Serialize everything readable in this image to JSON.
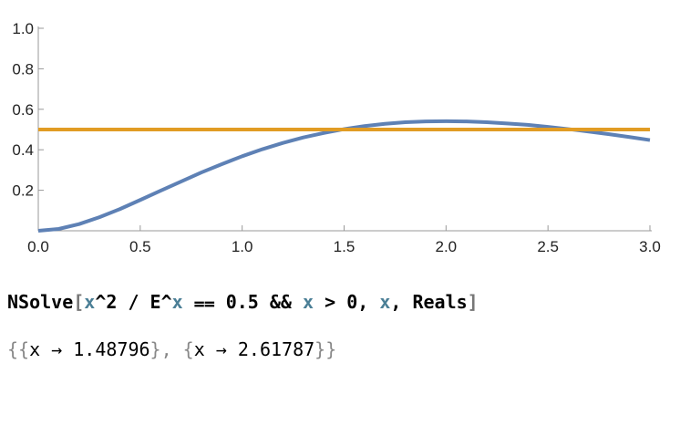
{
  "chart_data": {
    "type": "line",
    "x": [
      0,
      0.1,
      0.2,
      0.3,
      0.4,
      0.5,
      0.6,
      0.7,
      0.8,
      0.9,
      1,
      1.1,
      1.2,
      1.3,
      1.4,
      1.5,
      1.6,
      1.7,
      1.8,
      1.9,
      2,
      2.1,
      2.2,
      2.3,
      2.4,
      2.5,
      2.6,
      2.7,
      2.8,
      2.9,
      3
    ],
    "series": [
      {
        "color": "#5e81b5",
        "values": [
          0,
          0.009,
          0.033,
          0.067,
          0.107,
          0.152,
          0.198,
          0.243,
          0.288,
          0.329,
          0.368,
          0.403,
          0.434,
          0.461,
          0.483,
          0.502,
          0.517,
          0.528,
          0.536,
          0.54,
          0.541,
          0.54,
          0.536,
          0.53,
          0.523,
          0.513,
          0.502,
          0.49,
          0.477,
          0.463,
          0.448
        ]
      },
      {
        "color": "#e19c24",
        "values": [
          0.5,
          0.5,
          0.5,
          0.5,
          0.5,
          0.5,
          0.5,
          0.5,
          0.5,
          0.5,
          0.5,
          0.5,
          0.5,
          0.5,
          0.5,
          0.5,
          0.5,
          0.5,
          0.5,
          0.5,
          0.5,
          0.5,
          0.5,
          0.5,
          0.5,
          0.5,
          0.5,
          0.5,
          0.5,
          0.5,
          0.5
        ]
      }
    ],
    "xlim": [
      0,
      3
    ],
    "xticks": [
      {
        "value": 0,
        "label": "0.0"
      },
      0.5,
      {
        "value": 1,
        "label": "1.0"
      },
      1.5,
      {
        "value": 2,
        "label": "2.0"
      },
      2.5,
      {
        "value": 3,
        "label": "3.0"
      }
    ],
    "ylim": [
      0,
      1
    ],
    "yticks": [
      0.2,
      0.4,
      0.6,
      0.8,
      {
        "value": 1,
        "label": "1.0"
      }
    ]
  },
  "input": [
    {
      "text": "NSolve",
      "color": "#000000"
    },
    {
      "text": "[",
      "color": "#777777"
    },
    {
      "text": "x",
      "color": "#4b7f96"
    },
    {
      "text": "^2 / E^",
      "color": "#000000"
    },
    {
      "text": "x",
      "color": "#4b7f96"
    },
    {
      "text": " ⩵ 0.5 && ",
      "color": "#000000"
    },
    {
      "text": "x",
      "color": "#4b7f96"
    },
    {
      "text": " > 0, ",
      "color": "#000000"
    },
    {
      "text": "x",
      "color": "#4b7f96"
    },
    {
      "text": ", Reals",
      "color": "#000000"
    },
    {
      "text": "]",
      "color": "#777777"
    }
  ],
  "output": [
    {
      "text": "{{",
      "color": "#888888"
    },
    {
      "text": "x → 1.48796",
      "color": "#000000"
    },
    {
      "text": "}, {",
      "color": "#888888"
    },
    {
      "text": "x → 2.61787",
      "color": "#000000"
    },
    {
      "text": "}}",
      "color": "#888888"
    }
  ]
}
